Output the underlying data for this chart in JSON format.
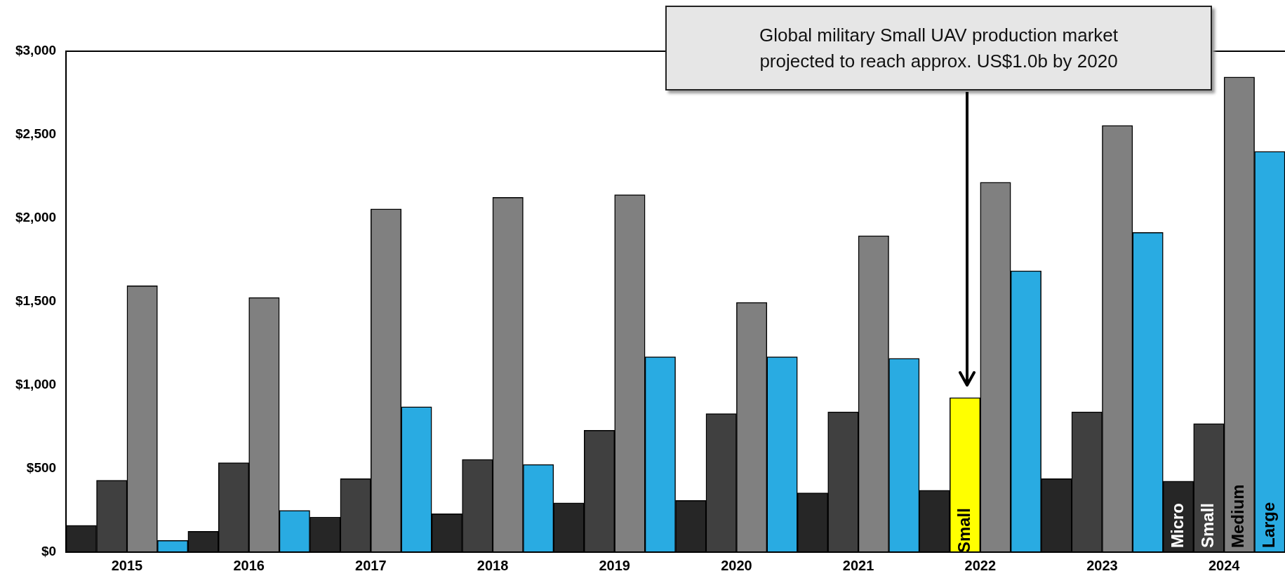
{
  "chart_data": {
    "type": "bar",
    "categories": [
      "2015",
      "2016",
      "2017",
      "2018",
      "2019",
      "2020",
      "2021",
      "2022",
      "2023",
      "2024"
    ],
    "series": [
      {
        "name": "Micro",
        "color": "#262626",
        "values": [
          160,
          125,
          210,
          230,
          295,
          310,
          355,
          370,
          440,
          425
        ]
      },
      {
        "name": "Small",
        "color": "#404040",
        "colors": [
          "#404040",
          "#404040",
          "#404040",
          "#404040",
          "#404040",
          "#404040",
          "#404040",
          "#ffff00",
          "#404040",
          "#404040"
        ],
        "values": [
          430,
          535,
          440,
          555,
          730,
          830,
          840,
          925,
          840,
          770
        ]
      },
      {
        "name": "Medium",
        "color": "#808080",
        "values": [
          1595,
          1525,
          2055,
          2125,
          2140,
          1495,
          1895,
          2215,
          2555,
          2845
        ]
      },
      {
        "name": "Large",
        "color": "#29abe2",
        "values": [
          70,
          250,
          870,
          525,
          1170,
          1170,
          1160,
          1685,
          1915,
          2400
        ]
      }
    ],
    "ylim": [
      0,
      3000
    ],
    "yticks": [
      {
        "value": 0,
        "label": "$0"
      },
      {
        "value": 500,
        "label": "$500"
      },
      {
        "value": 1000,
        "label": "$1,000"
      },
      {
        "value": 1500,
        "label": "$1,500"
      },
      {
        "value": 2000,
        "label": "$2,000"
      },
      {
        "value": 2500,
        "label": "$2,500"
      },
      {
        "value": 3000,
        "label": "$3,000"
      }
    ],
    "grid": false,
    "legend": false,
    "annotations": [
      "Global military Small UAV production market projected to reach approx. US$1.0b by 2020",
      {
        "text": "Small",
        "x": "2022",
        "y": 130
      }
    ]
  }
}
